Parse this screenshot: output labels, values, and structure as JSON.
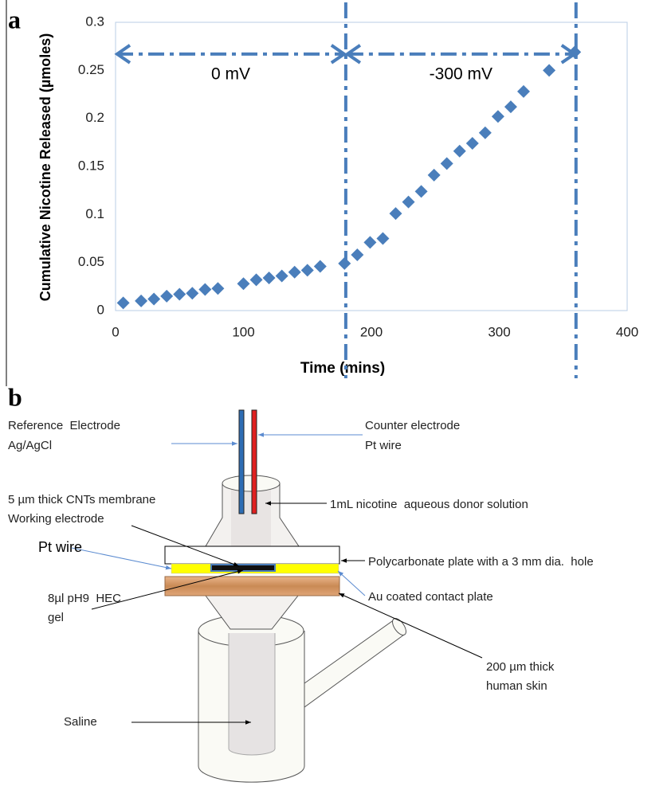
{
  "chart_data": {
    "type": "scatter",
    "x": [
      6,
      20,
      30,
      40,
      50,
      60,
      70,
      80,
      100,
      110,
      120,
      130,
      140,
      150,
      160,
      179,
      189,
      199,
      209,
      219,
      229,
      239,
      249,
      259,
      269,
      279,
      289,
      299,
      309,
      319,
      339,
      359
    ],
    "values": [
      0.008,
      0.01,
      0.012,
      0.015,
      0.017,
      0.018,
      0.022,
      0.023,
      0.028,
      0.032,
      0.034,
      0.036,
      0.04,
      0.042,
      0.046,
      0.049,
      0.058,
      0.071,
      0.075,
      0.101,
      0.113,
      0.124,
      0.141,
      0.153,
      0.166,
      0.174,
      0.185,
      0.202,
      0.212,
      0.228,
      0.25,
      0.269
    ],
    "color": "#4a7ebb",
    "marker": "diamond",
    "xlim": [
      0,
      400
    ],
    "xticks": [
      0,
      100,
      200,
      300,
      400
    ],
    "ylim": [
      0,
      0.3
    ],
    "yticks": [
      0,
      0.05,
      0.1,
      0.15,
      0.2,
      0.25,
      0.3
    ],
    "x_label": "Time (mins)",
    "y_label": "Cumulative Nicotine Released (µmoles)",
    "annotations": [
      {
        "text": "0 mV",
        "x": [
          0,
          180
        ],
        "y": 0.267
      },
      {
        "text": "-300 mV",
        "x": [
          180,
          360
        ],
        "y": 0.267
      }
    ],
    "vlines": [
      180,
      360
    ]
  },
  "panel_labels": [
    "a",
    "b"
  ],
  "diagram": {
    "reference_electrode": [
      "Reference  Electrode",
      "Ag/AgCl"
    ],
    "counter_electrode": [
      "Counter electrode",
      "Pt wire"
    ],
    "membrane": [
      "5 µm thick CNTs membrane",
      "Working electrode"
    ],
    "donor": "1mL nicotine  aqueous donor solution",
    "pt_wire": "Pt wire",
    "polycarbonate": "Polycarbonate plate with a 3 mm dia.  hole",
    "contact_plate": "Au coated contact plate",
    "gel": [
      "8µl pH9  HEC",
      "gel"
    ],
    "skin": [
      "200 µm thick",
      "human skin"
    ],
    "saline": "Saline"
  }
}
